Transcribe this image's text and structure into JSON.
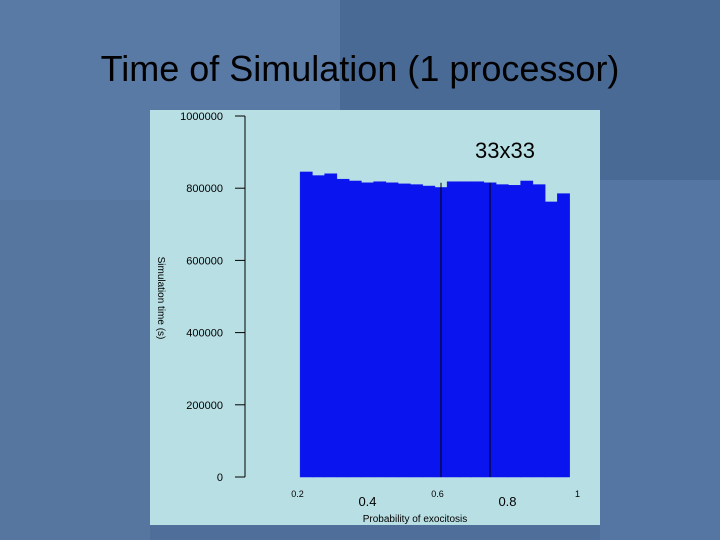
{
  "slide": {
    "title": "Time of Simulation (1 processor)"
  },
  "colors": {
    "background": "#4f6f9a",
    "panel": "#b8dfe4",
    "bar": "#0a14ee",
    "bar_stroke": "#000000"
  },
  "chart_data": {
    "type": "bar",
    "annotation": "33x33",
    "xlabel": "Probability of exocitosis",
    "ylabel": "Simulation time (s)",
    "x_ticks": [
      {
        "value": 0.2,
        "label": "0.2"
      },
      {
        "value": 0.4,
        "label": "0.4"
      },
      {
        "value": 0.6,
        "label": "0.6"
      },
      {
        "value": 0.8,
        "label": "0.8"
      },
      {
        "value": 1.0,
        "label": "1"
      }
    ],
    "y_ticks": [
      {
        "value": 0,
        "label": "0"
      },
      {
        "value": 200000,
        "label": "200000"
      },
      {
        "value": 400000,
        "label": "400000"
      },
      {
        "value": 600000,
        "label": "600000"
      },
      {
        "value": 800000,
        "label": "800000"
      },
      {
        "value": 1000000,
        "label": "1000000"
      }
    ],
    "xlim": [
      0.05,
      1.05
    ],
    "ylim": [
      0,
      1000000
    ],
    "x": [
      0.225,
      0.26,
      0.295,
      0.33,
      0.365,
      0.4,
      0.435,
      0.47,
      0.505,
      0.54,
      0.575,
      0.61,
      0.645,
      0.68,
      0.715,
      0.75,
      0.785,
      0.82,
      0.855,
      0.89,
      0.925,
      0.96
    ],
    "values": [
      845000,
      835000,
      840000,
      825000,
      820000,
      815000,
      818000,
      815000,
      812000,
      810000,
      806000,
      802000,
      818000,
      818000,
      818000,
      815000,
      810000,
      808000,
      820000,
      810000,
      762000,
      785000
    ],
    "bar_width": 0.035,
    "grid": false
  }
}
